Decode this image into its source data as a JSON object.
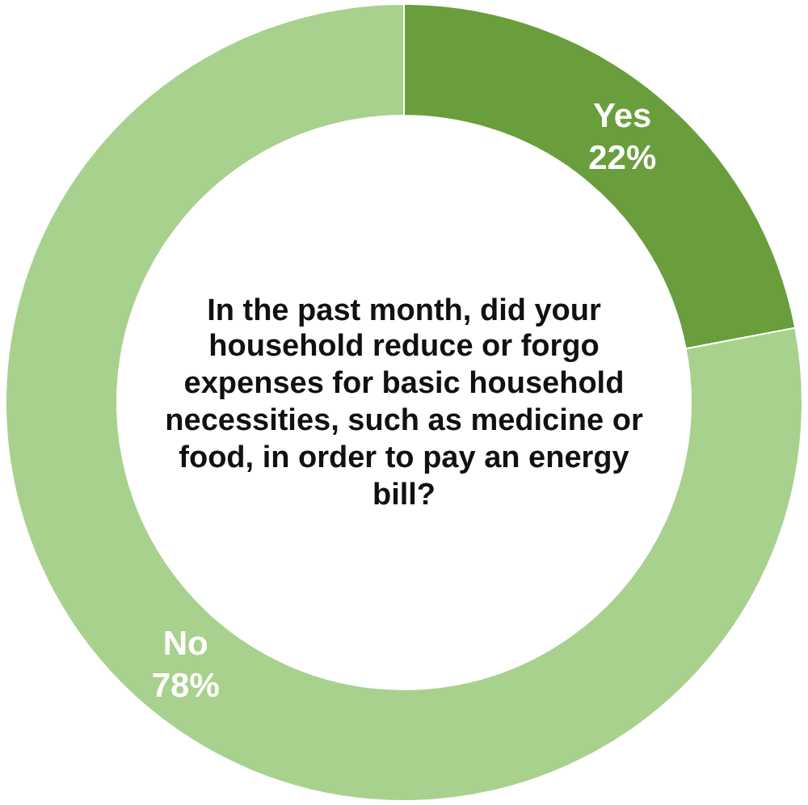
{
  "chart_data": {
    "type": "donut",
    "title": "In the past month, did your household reduce or forgo expenses for basic household necessities, such as medicine or food, in order to pay an energy bill?",
    "categories": [
      "Yes",
      "No"
    ],
    "values": [
      22,
      78
    ],
    "colors": [
      "#6a9e3c",
      "#a9d18e"
    ],
    "value_labels": [
      "22%",
      "78%"
    ]
  }
}
